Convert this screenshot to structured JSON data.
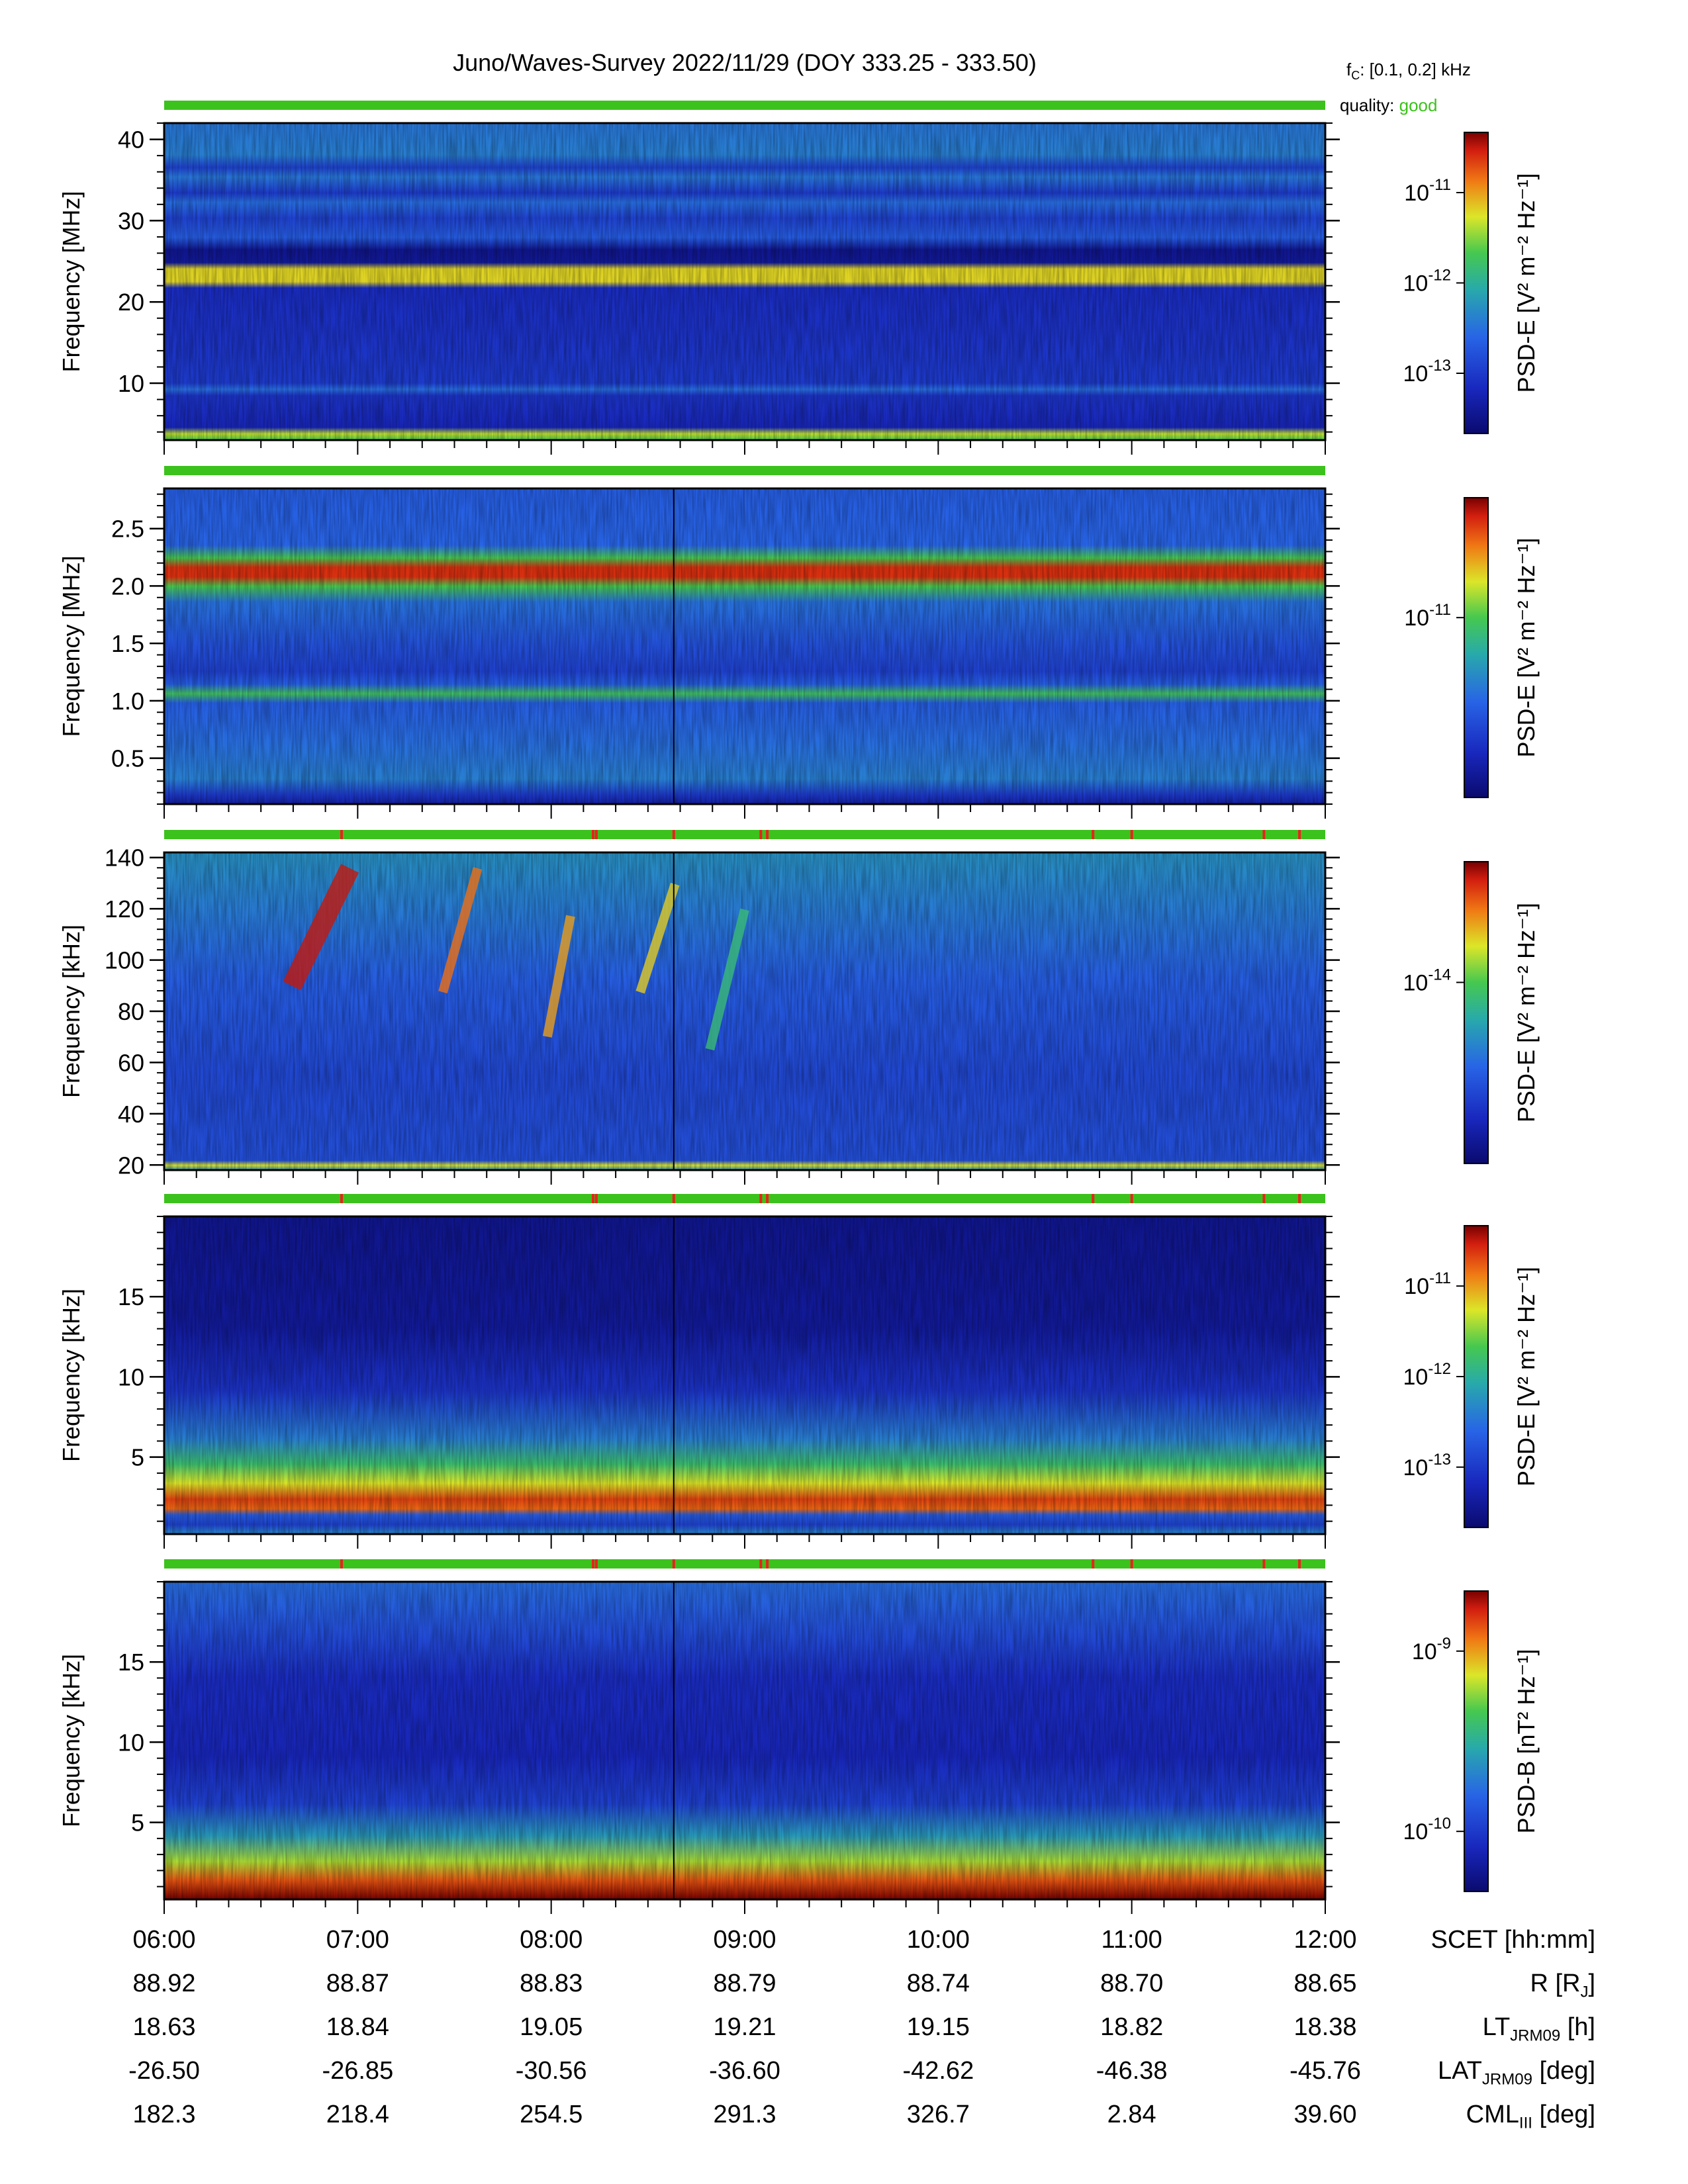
{
  "header": {
    "title": "Juno/Waves-Survey  2022/11/29 (DOY 333.25 - 333.50)",
    "fc_label": "f",
    "fc_sub": "C",
    "fc_value": ": [0.1, 0.2] kHz",
    "quality_label": "quality:",
    "quality_value": "good",
    "quality_color": "#3cc21c"
  },
  "chart_data": [
    {
      "type": "heatmap",
      "ylabel": "Frequency [MHz]",
      "ylim": [
        3,
        42
      ],
      "yticks": [
        10,
        20,
        30,
        40
      ],
      "colorbar_label": "PSD-E [V² m⁻² Hz⁻¹]",
      "colorbar_ticks": [
        "10^-11",
        "10^-12",
        "10^-13"
      ],
      "quality_flags": []
    },
    {
      "type": "heatmap",
      "ylabel": "Frequency [MHz]",
      "ylim": [
        0.1,
        2.85
      ],
      "yticks": [
        0.5,
        1.0,
        1.5,
        2.0,
        2.5
      ],
      "colorbar_label": "PSD-E [V² m⁻² Hz⁻¹]",
      "colorbar_ticks": [
        "10^-11"
      ],
      "quality_flags": []
    },
    {
      "type": "heatmap",
      "ylabel": "Frequency [kHz]",
      "ylim": [
        18,
        142
      ],
      "yticks": [
        20,
        40,
        60,
        80,
        100,
        120,
        140
      ],
      "colorbar_label": "PSD-E [V² m⁻² Hz⁻¹]",
      "colorbar_ticks": [
        "10^-14"
      ],
      "quality_flags": [
        "06:55",
        "08:13",
        "08:14",
        "08:38",
        "09:05",
        "09:07",
        "10:48",
        "11:00",
        "11:41",
        "11:52"
      ]
    },
    {
      "type": "heatmap",
      "ylabel": "Frequency [kHz]",
      "ylim": [
        0.2,
        20
      ],
      "yticks": [
        5,
        10,
        15
      ],
      "colorbar_label": "PSD-E [V² m⁻² Hz⁻¹]",
      "colorbar_ticks": [
        "10^-11",
        "10^-12",
        "10^-13"
      ],
      "quality_flags": [
        "06:55",
        "08:13",
        "08:14",
        "08:38",
        "09:05",
        "09:07",
        "10:48",
        "11:00",
        "11:41",
        "11:52"
      ]
    },
    {
      "type": "heatmap",
      "ylabel": "Frequency [kHz]",
      "ylim": [
        0.2,
        20
      ],
      "yticks": [
        5,
        10,
        15
      ],
      "colorbar_label": "PSD-B [nT² Hz⁻¹]",
      "colorbar_ticks": [
        "10^-9",
        "10^-10"
      ],
      "quality_flags": [
        "06:55",
        "08:13",
        "08:14",
        "08:38",
        "09:05",
        "09:07",
        "10:48",
        "11:00",
        "11:41",
        "11:52"
      ]
    }
  ],
  "x_axis": {
    "xlim": [
      "06:00",
      "12:00"
    ],
    "marker_time": "08:38"
  },
  "ephemeris": {
    "SCET": {
      "values": [
        "06:00",
        "07:00",
        "08:00",
        "09:00",
        "10:00",
        "11:00",
        "12:00"
      ],
      "label": "SCET [hh:mm]"
    },
    "R": {
      "values": [
        "88.92",
        "88.87",
        "88.83",
        "88.79",
        "88.74",
        "88.70",
        "88.65"
      ],
      "label": "R [R",
      "label_sub": "J",
      "label_end": "]"
    },
    "LT": {
      "values": [
        "18.63",
        "18.84",
        "19.05",
        "19.21",
        "19.15",
        "18.82",
        "18.38"
      ],
      "label": "LT",
      "label_sub": "JRM09",
      "label_end": " [h]"
    },
    "LAT": {
      "values": [
        "-26.50",
        "-26.85",
        "-30.56",
        "-36.60",
        "-42.62",
        "-46.38",
        "-45.76"
      ],
      "label": "LAT",
      "label_sub": "JRM09",
      "label_end": " [deg]"
    },
    "CML": {
      "values": [
        "182.3",
        "218.4",
        "254.5",
        "291.3",
        "326.7",
        "2.84",
        "39.60"
      ],
      "label": "CML",
      "label_sub": "III",
      "label_end": " [deg]"
    }
  },
  "colors": {
    "quality_bar": "#3cc21c",
    "flag": "#e8231c",
    "marker_line": "#000000"
  }
}
